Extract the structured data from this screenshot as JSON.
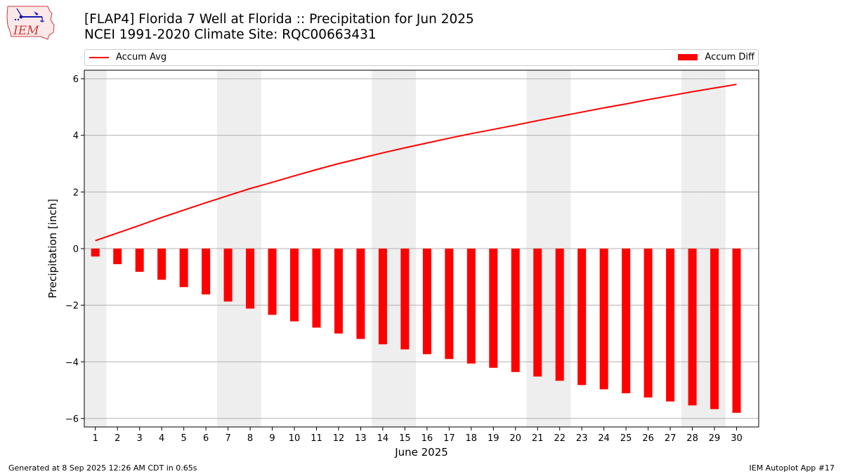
{
  "logo": {
    "text": "IEM"
  },
  "header": {
    "title": "[FLAP4] Florida 7 Well at Florida :: Precipitation for Jun 2025",
    "subtitle": "NCEI 1991-2020 Climate Site: RQC00663431"
  },
  "legend": {
    "line_label": "Accum Avg",
    "bar_label": "Accum Diff"
  },
  "footer": {
    "left": "Generated at 8 Sep 2025 12:26 AM CDT in 0.65s",
    "right": "IEM Autoplot App #17"
  },
  "colors": {
    "bar": "#ff0000",
    "line": "#ff0000",
    "weekend_shade": "#eeeeee",
    "grid": "#b0b0b0"
  },
  "chart_data": {
    "type": "bar",
    "xlabel": "June 2025",
    "ylabel": "Precipitation [inch]",
    "ylim": [
      -6.3,
      6.3
    ],
    "yticks": [
      -6,
      -4,
      -2,
      0,
      2,
      4,
      6
    ],
    "grid": "horizontal",
    "legend_placement": "top, above plot",
    "categories": [
      1,
      2,
      3,
      4,
      5,
      6,
      7,
      8,
      9,
      10,
      11,
      12,
      13,
      14,
      15,
      16,
      17,
      18,
      19,
      20,
      21,
      22,
      23,
      24,
      25,
      26,
      27,
      28,
      29,
      30
    ],
    "shaded_days": [
      1,
      7,
      8,
      14,
      15,
      21,
      22,
      28,
      29
    ],
    "series": [
      {
        "name": "Accum Diff",
        "type": "bar",
        "values": [
          -0.28,
          -0.55,
          -0.82,
          -1.1,
          -1.36,
          -1.62,
          -1.87,
          -2.12,
          -2.34,
          -2.57,
          -2.79,
          -3.0,
          -3.19,
          -3.38,
          -3.56,
          -3.73,
          -3.9,
          -4.06,
          -4.21,
          -4.36,
          -4.52,
          -4.67,
          -4.82,
          -4.97,
          -5.11,
          -5.26,
          -5.4,
          -5.54,
          -5.67,
          -5.8
        ]
      },
      {
        "name": "Accum Avg",
        "type": "line",
        "values": [
          0.28,
          0.55,
          0.82,
          1.1,
          1.36,
          1.62,
          1.87,
          2.12,
          2.34,
          2.57,
          2.79,
          3.0,
          3.19,
          3.38,
          3.56,
          3.73,
          3.9,
          4.06,
          4.21,
          4.36,
          4.52,
          4.67,
          4.82,
          4.97,
          5.11,
          5.26,
          5.4,
          5.54,
          5.67,
          5.8
        ]
      }
    ]
  }
}
